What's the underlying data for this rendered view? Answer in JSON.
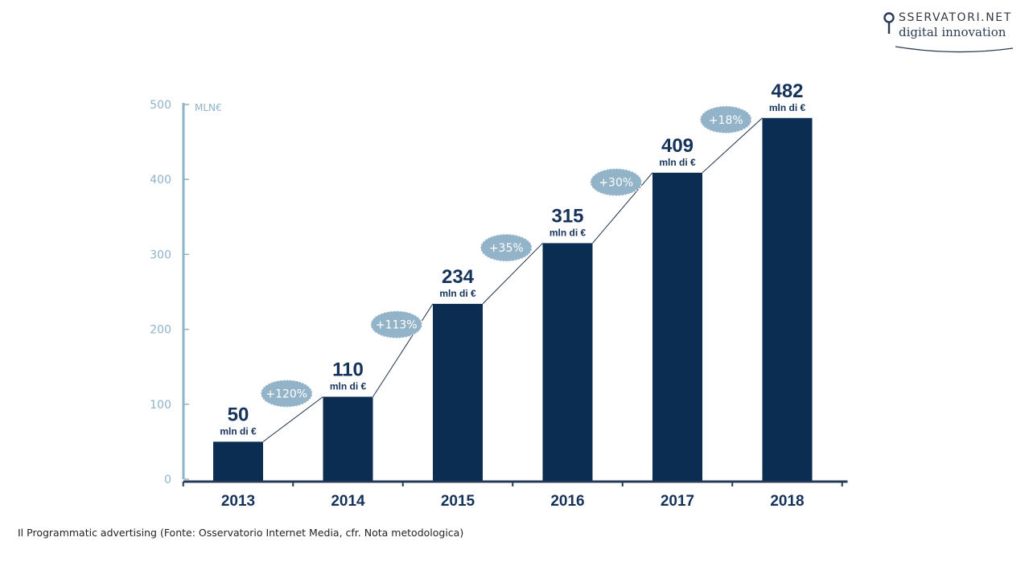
{
  "logo": {
    "brand": "SSERVATORI.NET",
    "tagline": "digital innovation",
    "icon": "magnifier-o-icon"
  },
  "caption": "Il Programmatic advertising (Fonte: Osservatorio Internet Media, cfr. Nota metodologica)",
  "colors": {
    "bar": "#0b2d52",
    "axis": "#8fb3c9",
    "tick_label": "#8fb3c9",
    "growth_badge": "#93b4c8",
    "value_label": "#14325a",
    "category_label": "#14325a"
  },
  "chart_data": {
    "type": "bar",
    "categories": [
      "2013",
      "2014",
      "2015",
      "2016",
      "2017",
      "2018"
    ],
    "values": [
      50,
      110,
      234,
      315,
      409,
      482
    ],
    "value_unit_label": "mln di €",
    "growth_labels": [
      "+120%",
      "+113%",
      "+35%",
      "+30%",
      "+18%"
    ],
    "ylabel": "MLN€",
    "yticks": [
      0,
      100,
      200,
      300,
      400,
      500
    ],
    "ylim": [
      0,
      500
    ],
    "grid": false,
    "connector_line": true
  }
}
